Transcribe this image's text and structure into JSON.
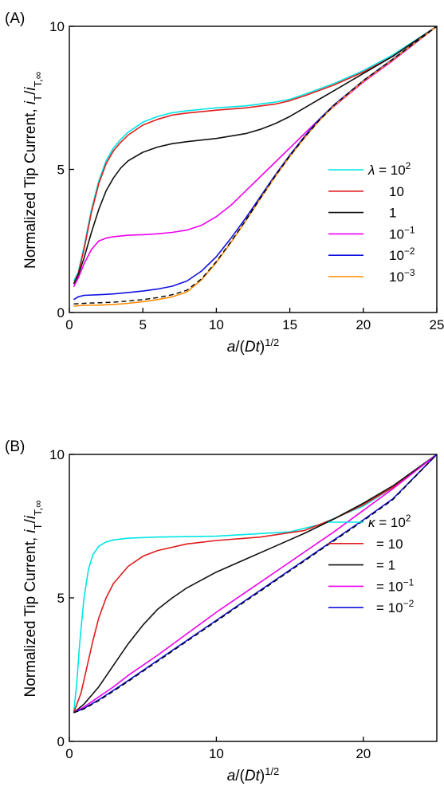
{
  "chart_data": [
    {
      "type": "line",
      "panel_label": "(A)",
      "xlabel": "a/(Dt)^1/2",
      "ylabel": "Normalized Tip Current, iT/iT,∞",
      "xlim": [
        0,
        25
      ],
      "ylim": [
        0,
        10
      ],
      "xticks": [
        0,
        5,
        10,
        15,
        20,
        25
      ],
      "yticks": [
        0,
        5,
        10
      ],
      "grid": false,
      "legend_position": "right",
      "legend_symbol": "λ",
      "legend_prefix": "λ = ",
      "series": [
        {
          "name": "10^2",
          "label_base": "10",
          "label_exp": "2",
          "color": "#00e5e5",
          "x": [
            0.3,
            0.6,
            1.0,
            1.5,
            2,
            2.5,
            3,
            3.5,
            4,
            5,
            6,
            7,
            8,
            10,
            12,
            14,
            15,
            16,
            18,
            20,
            22,
            25
          ],
          "y": [
            1.1,
            1.4,
            2.3,
            3.6,
            4.6,
            5.3,
            5.75,
            6.05,
            6.3,
            6.65,
            6.85,
            6.98,
            7.05,
            7.15,
            7.22,
            7.35,
            7.45,
            7.62,
            8.0,
            8.45,
            9.0,
            10.0
          ]
        },
        {
          "name": "10",
          "label_base": "10",
          "label_exp": "",
          "color": "#e01c1c",
          "x": [
            0.3,
            0.6,
            1.0,
            1.5,
            2,
            2.5,
            3,
            3.5,
            4,
            5,
            6,
            7,
            8,
            10,
            12,
            14,
            15,
            16,
            18,
            20,
            22,
            25
          ],
          "y": [
            1.0,
            1.35,
            2.2,
            3.5,
            4.5,
            5.2,
            5.65,
            5.95,
            6.2,
            6.55,
            6.75,
            6.9,
            6.97,
            7.07,
            7.15,
            7.28,
            7.4,
            7.57,
            7.95,
            8.4,
            8.95,
            10.0
          ]
        },
        {
          "name": "1",
          "label_base": "1",
          "label_exp": "",
          "color": "#111111",
          "x": [
            0.3,
            0.6,
            1.0,
            1.5,
            2,
            2.5,
            3,
            3.5,
            4,
            5,
            6,
            7,
            8,
            10,
            12,
            13,
            14,
            15,
            16,
            17,
            18,
            20,
            22,
            25
          ],
          "y": [
            1.0,
            1.3,
            1.9,
            2.8,
            3.6,
            4.25,
            4.7,
            5.05,
            5.3,
            5.6,
            5.78,
            5.9,
            5.97,
            6.08,
            6.25,
            6.4,
            6.6,
            6.85,
            7.15,
            7.45,
            7.75,
            8.35,
            8.95,
            10.0
          ]
        },
        {
          "name": "10^−1",
          "label_base": "10",
          "label_exp": "−1",
          "color": "#ee00ee",
          "x": [
            0.3,
            0.6,
            1.0,
            1.5,
            2,
            2.5,
            3,
            4,
            5,
            6,
            7,
            8,
            9,
            10,
            11,
            12,
            13,
            14,
            15,
            16,
            17,
            18,
            20,
            22,
            25
          ],
          "y": [
            0.9,
            1.2,
            1.7,
            2.2,
            2.5,
            2.6,
            2.65,
            2.7,
            2.72,
            2.75,
            2.8,
            2.88,
            3.05,
            3.35,
            3.75,
            4.25,
            4.75,
            5.25,
            5.75,
            6.25,
            6.75,
            7.2,
            8.05,
            8.8,
            10.0
          ]
        },
        {
          "name": "10^−2",
          "label_base": "10",
          "label_exp": "−2",
          "color": "#1010e0",
          "x": [
            0.3,
            0.6,
            1.0,
            2,
            3,
            4,
            5,
            6,
            7,
            8,
            9,
            10,
            11,
            12,
            13,
            14,
            15,
            16,
            17,
            18,
            20,
            22,
            25
          ],
          "y": [
            0.45,
            0.55,
            0.6,
            0.62,
            0.65,
            0.7,
            0.75,
            0.82,
            0.92,
            1.1,
            1.45,
            1.95,
            2.6,
            3.3,
            4.05,
            4.8,
            5.5,
            6.15,
            6.75,
            7.25,
            8.1,
            8.85,
            10.0
          ]
        },
        {
          "name": "10^−3",
          "label_base": "10",
          "label_exp": "−3",
          "color": "#ff8c00",
          "x": [
            0.3,
            0.6,
            1.0,
            2,
            3,
            4,
            5,
            6,
            7,
            8,
            9,
            10,
            11,
            12,
            13,
            14,
            15,
            16,
            17,
            18,
            20,
            22,
            25
          ],
          "y": [
            0.22,
            0.24,
            0.25,
            0.26,
            0.28,
            0.32,
            0.38,
            0.45,
            0.55,
            0.72,
            1.15,
            1.75,
            2.45,
            3.2,
            3.98,
            4.75,
            5.45,
            6.1,
            6.7,
            7.22,
            8.08,
            8.83,
            10.0
          ]
        }
      ],
      "reference_curve": {
        "style": "dashed",
        "color": "#000000",
        "x": [
          0.3,
          0.6,
          1.0,
          2,
          3,
          4,
          5,
          6,
          7,
          8,
          9,
          10,
          11,
          12,
          13,
          14,
          15,
          16,
          17,
          18,
          20,
          22,
          25
        ],
        "y": [
          0.3,
          0.31,
          0.32,
          0.34,
          0.36,
          0.4,
          0.45,
          0.52,
          0.62,
          0.78,
          1.18,
          1.78,
          2.48,
          3.22,
          4.0,
          4.77,
          5.47,
          6.12,
          6.72,
          7.24,
          8.1,
          8.85,
          10.0
        ]
      }
    },
    {
      "type": "line",
      "panel_label": "(B)",
      "xlabel": "a/(Dt)^1/2",
      "ylabel": "Normalized Tip Current, iT/iT,∞",
      "xlim": [
        0,
        25
      ],
      "ylim": [
        0,
        10
      ],
      "xticks": [
        0,
        10,
        20
      ],
      "yticks": [
        0,
        5,
        10
      ],
      "grid": false,
      "legend_position": "right",
      "legend_symbol": "κ",
      "legend_prefix": "κ = ",
      "series": [
        {
          "name": "10^2",
          "label_base": "10",
          "label_exp": "2",
          "color": "#00e5e5",
          "x": [
            0.3,
            0.5,
            0.7,
            1.0,
            1.3,
            1.6,
            2,
            2.5,
            3,
            4,
            6,
            10,
            15,
            17,
            20,
            22,
            25
          ],
          "y": [
            1.0,
            2.0,
            3.4,
            5.0,
            6.0,
            6.5,
            6.8,
            6.95,
            7.02,
            7.08,
            7.12,
            7.15,
            7.3,
            7.55,
            8.2,
            8.85,
            10.0
          ]
        },
        {
          "name": "10",
          "label_base": "",
          "label_exp": "",
          "label_text": "= 10",
          "color": "#e01c1c",
          "x": [
            0.3,
            0.8,
            1.2,
            1.6,
            2,
            2.5,
            3,
            4,
            5,
            6,
            8,
            10,
            13,
            16,
            18,
            20,
            22,
            25
          ],
          "y": [
            1.0,
            1.7,
            2.6,
            3.5,
            4.3,
            5.0,
            5.5,
            6.1,
            6.45,
            6.65,
            6.88,
            7.0,
            7.12,
            7.35,
            7.75,
            8.25,
            8.85,
            10.0
          ]
        },
        {
          "name": "1",
          "label_base": "",
          "label_exp": "",
          "label_text": "= 1",
          "color": "#111111",
          "x": [
            0.3,
            1,
            2,
            3,
            4,
            5,
            6,
            7,
            8,
            10,
            12,
            14,
            16,
            18,
            20,
            22,
            25
          ],
          "y": [
            1.0,
            1.3,
            1.9,
            2.65,
            3.4,
            4.05,
            4.6,
            5.0,
            5.35,
            5.9,
            6.35,
            6.8,
            7.25,
            7.75,
            8.3,
            8.9,
            10.0
          ]
        },
        {
          "name": "= 10^−1",
          "label_base": "= 10",
          "label_exp": "−1",
          "color": "#ee00ee",
          "x": [
            0.3,
            1,
            2,
            3,
            4,
            6,
            8,
            10,
            12,
            14,
            16,
            18,
            20,
            22,
            25
          ],
          "y": [
            1.0,
            1.2,
            1.55,
            1.9,
            2.3,
            3.0,
            3.75,
            4.5,
            5.2,
            5.9,
            6.6,
            7.3,
            8.05,
            8.8,
            10.0
          ]
        },
        {
          "name": "= 10^−2",
          "label_base": "= 10",
          "label_exp": "−2",
          "color": "#1010e0",
          "x": [
            0.3,
            1,
            2,
            3,
            4,
            6,
            8,
            10,
            12,
            14,
            16,
            18,
            20,
            22,
            25
          ],
          "y": [
            1.0,
            1.15,
            1.45,
            1.78,
            2.12,
            2.82,
            3.52,
            4.22,
            4.92,
            5.62,
            6.32,
            7.02,
            7.72,
            8.45,
            10.0
          ]
        }
      ],
      "reference_curve": {
        "style": "dashed",
        "color": "#000000",
        "x": [
          0.3,
          1,
          2,
          3,
          4,
          6,
          8,
          10,
          12,
          14,
          16,
          18,
          20,
          22,
          25
        ],
        "y": [
          1.0,
          1.13,
          1.42,
          1.75,
          2.09,
          2.79,
          3.49,
          4.19,
          4.89,
          5.59,
          6.29,
          6.99,
          7.69,
          8.42,
          10.0
        ]
      }
    }
  ]
}
